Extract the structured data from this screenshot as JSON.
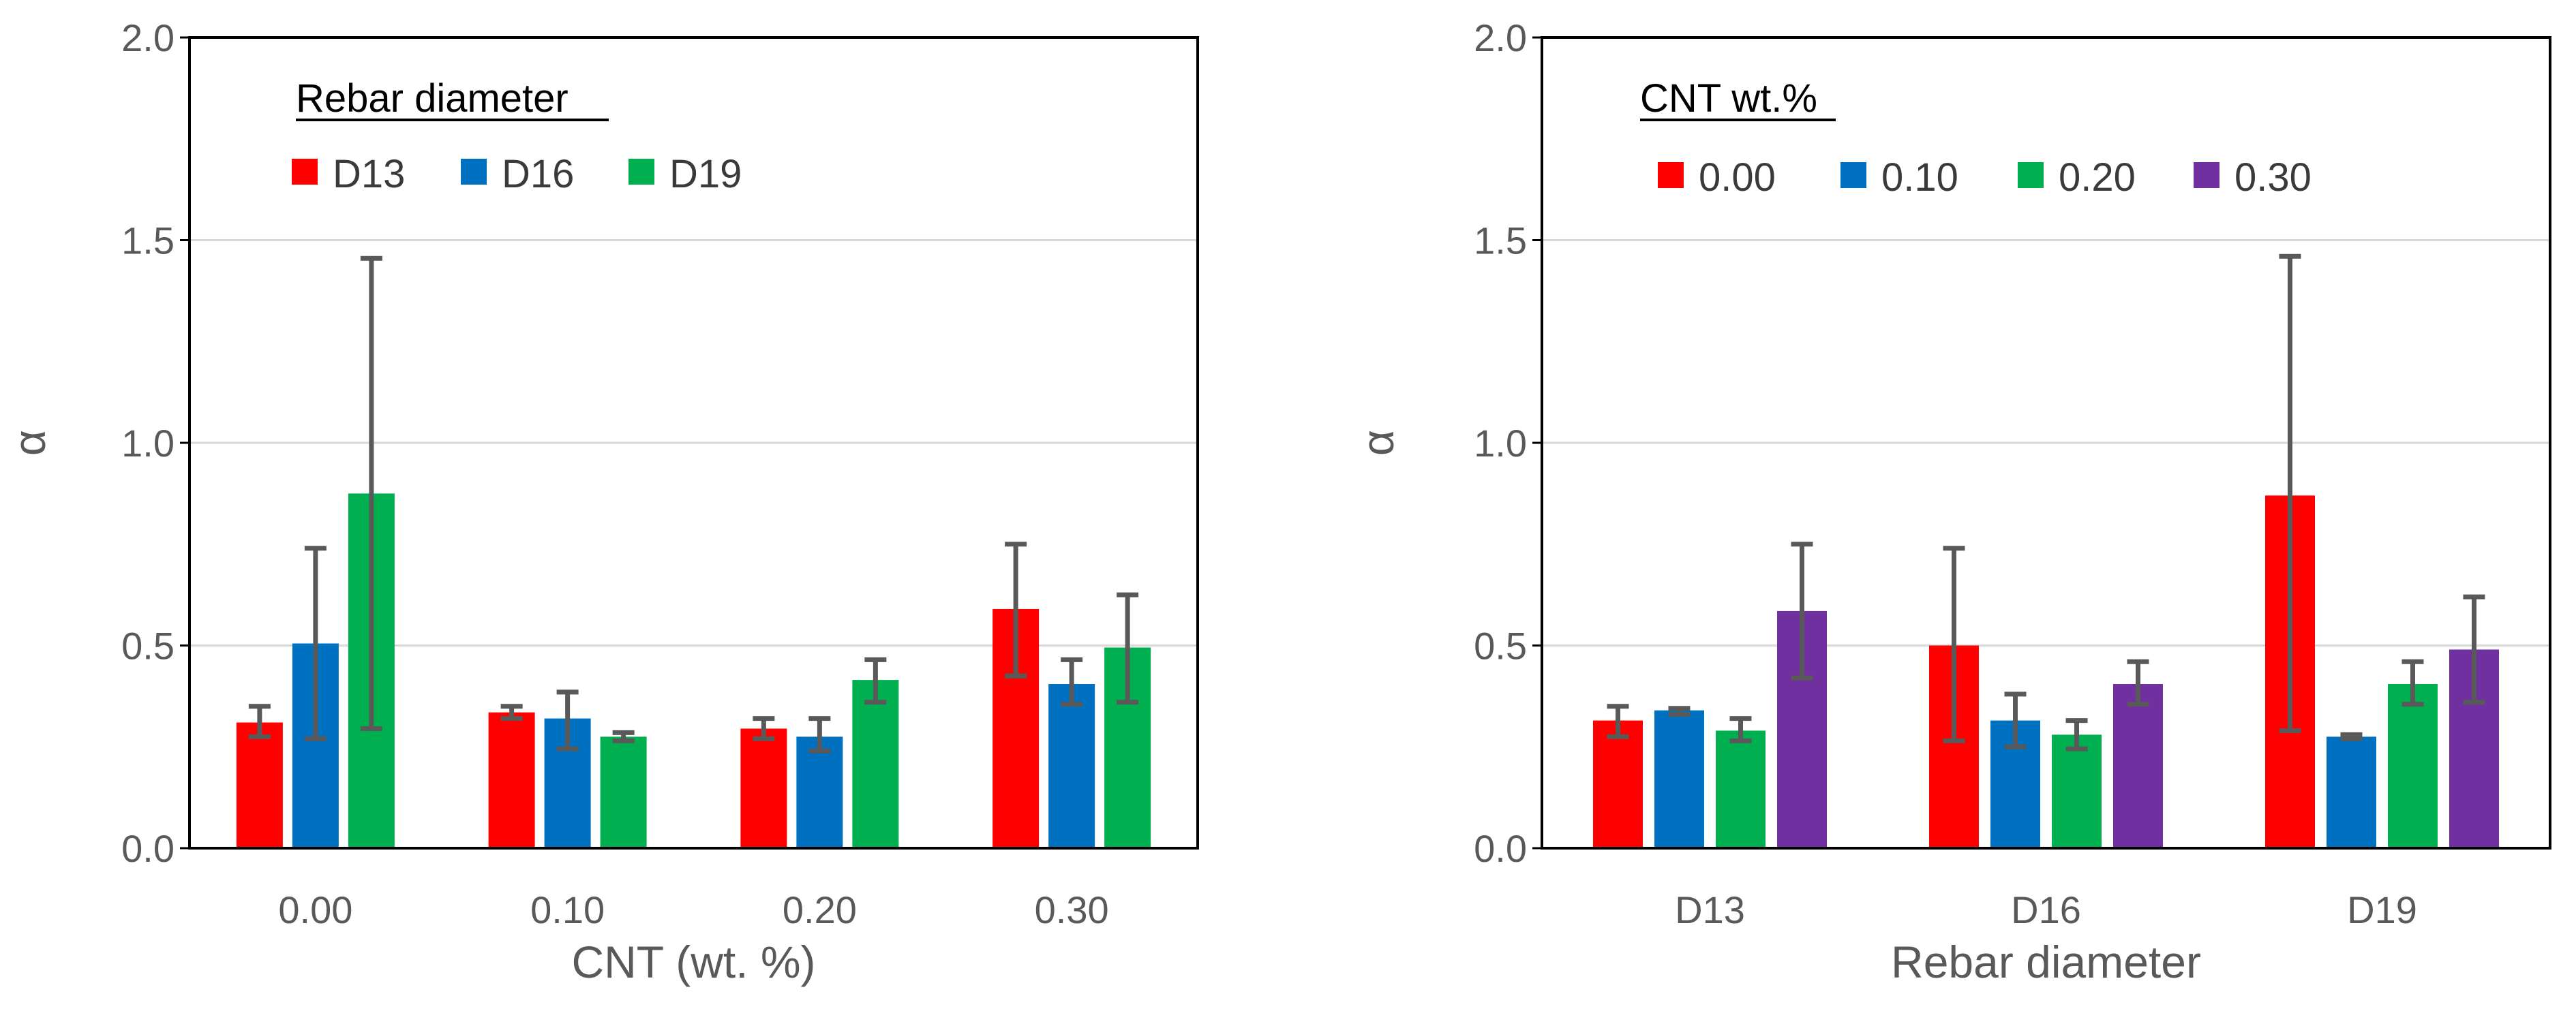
{
  "chart_data": [
    {
      "type": "bar",
      "title": "",
      "xlabel": "CNT (wt. %)",
      "ylabel": "α",
      "ylim": [
        0,
        2.0
      ],
      "yticks": [
        "0.0",
        "0.5",
        "1.0",
        "1.5",
        "2.0"
      ],
      "grid": true,
      "legend_title": "Rebar diameter",
      "legend_position": "top-left",
      "categories": [
        "0.00",
        "0.10",
        "0.20",
        "0.30"
      ],
      "series": [
        {
          "name": "D13",
          "color": "#ff0000",
          "values": [
            0.31,
            0.335,
            0.295,
            0.59
          ],
          "err_low": [
            0.275,
            0.32,
            0.27,
            0.425
          ],
          "err_high": [
            0.35,
            0.35,
            0.32,
            0.75
          ]
        },
        {
          "name": "D16",
          "color": "#0070c0",
          "values": [
            0.505,
            0.32,
            0.275,
            0.405
          ],
          "err_low": [
            0.27,
            0.245,
            0.24,
            0.355
          ],
          "err_high": [
            0.74,
            0.385,
            0.32,
            0.465
          ]
        },
        {
          "name": "D19",
          "color": "#00b050",
          "values": [
            0.875,
            0.275,
            0.415,
            0.495
          ],
          "err_low": [
            0.295,
            0.265,
            0.36,
            0.36
          ],
          "err_high": [
            1.455,
            0.285,
            0.465,
            0.625
          ]
        }
      ]
    },
    {
      "type": "bar",
      "title": "",
      "xlabel": "Rebar diameter",
      "ylabel": "α",
      "ylim": [
        0,
        2.0
      ],
      "yticks": [
        "0.0",
        "0.5",
        "1.0",
        "1.5",
        "2.0"
      ],
      "grid": true,
      "legend_title": "CNT wt.%",
      "legend_position": "top-left",
      "categories": [
        "D13",
        "D16",
        "D19"
      ],
      "series": [
        {
          "name": "0.00",
          "color": "#ff0000",
          "values": [
            0.315,
            0.5,
            0.87
          ],
          "err_low": [
            0.275,
            0.265,
            0.29
          ],
          "err_high": [
            0.35,
            0.74,
            1.46
          ]
        },
        {
          "name": "0.10",
          "color": "#0070c0",
          "values": [
            0.34,
            0.315,
            0.275
          ],
          "err_low": [
            0.33,
            0.25,
            0.27
          ],
          "err_high": [
            0.345,
            0.38,
            0.28
          ]
        },
        {
          "name": "0.20",
          "color": "#00b050",
          "values": [
            0.29,
            0.28,
            0.405
          ],
          "err_low": [
            0.265,
            0.245,
            0.355
          ],
          "err_high": [
            0.32,
            0.315,
            0.46
          ]
        },
        {
          "name": "0.30",
          "color": "#7030a0",
          "values": [
            0.585,
            0.405,
            0.49
          ],
          "err_low": [
            0.42,
            0.355,
            0.36
          ],
          "err_high": [
            0.75,
            0.46,
            0.62
          ]
        }
      ]
    }
  ]
}
